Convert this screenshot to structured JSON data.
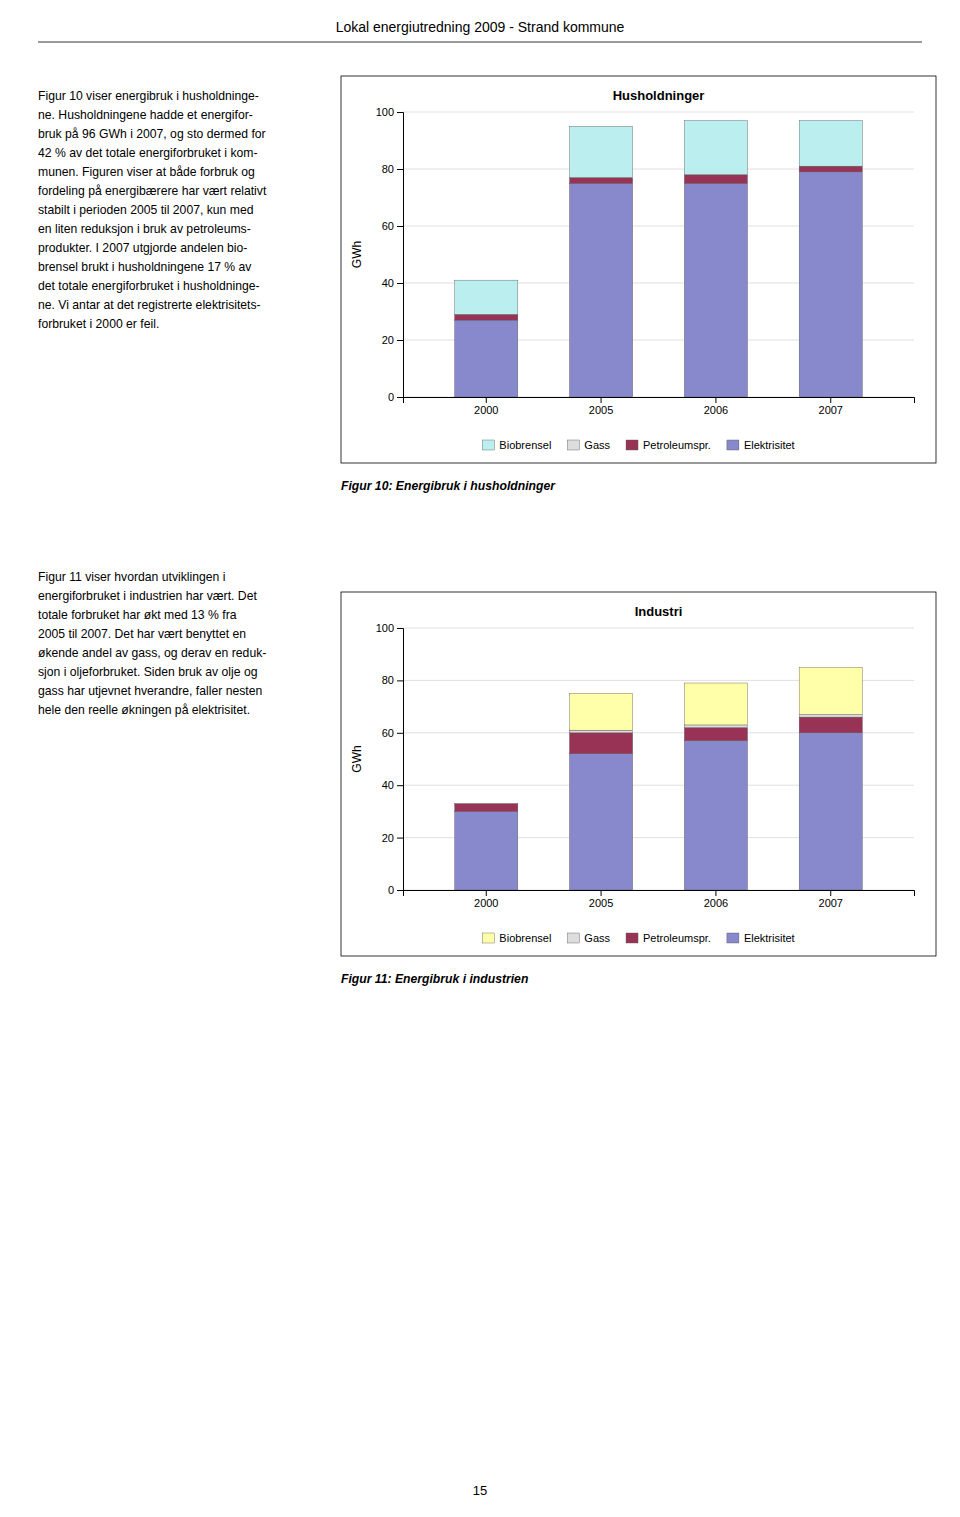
{
  "title": "Lokal energiutredning 2009 - Strand kommune",
  "annotations": [
    "15"
  ],
  "chart_data": [
    {
      "type": "bar",
      "stacked": true,
      "grid": true,
      "title": "Husholdninger",
      "ylabel": "GWh",
      "categories": [
        "2000",
        "2005",
        "2006",
        "2007"
      ],
      "series": [
        {
          "name": "Elektrisitet",
          "color": "#8888cc",
          "values": [
            27,
            75,
            75,
            79
          ]
        },
        {
          "name": "Petroleumspr.",
          "color": "#993355",
          "values": [
            2,
            2,
            3,
            2
          ]
        },
        {
          "name": "Gass",
          "color": "#dddddd",
          "values": [
            0,
            0,
            0,
            0
          ]
        },
        {
          "name": "Biobrensel",
          "color": "#bbeeee",
          "values": [
            12,
            18,
            19,
            16
          ]
        }
      ],
      "ylim": [
        0,
        100
      ],
      "yticks": [
        0,
        20,
        40,
        60,
        80,
        100
      ],
      "annotations": [
        "Figur 10 viser energibruk i husholdninge-\nne. Husholdningene hadde et energifor-\nbruk på 96 GWh i 2007, og sto dermed for\n42 % av det totale energiforbruket i kom-\nmunen. Figuren viser at både forbruk og\nfordeling på energibærere har vært relativt\nstabilt i perioden 2005 til 2007, kun med\nen liten reduksjon i bruk av petroleums-\nprodukter. I 2007 utgjorde andelen bio-\nbrensel brukt i husholdningene 17 % av\ndet totale energiforbruket i husholdninge-\nne. Vi antar at det registrerte elektrisitets-\nforbruket i 2000 er feil.",
        "Figur 10: Energibruk i husholdninger"
      ]
    },
    {
      "type": "bar",
      "stacked": true,
      "grid": true,
      "title": "Industri",
      "ylabel": "GWh",
      "categories": [
        "2000",
        "2005",
        "2006",
        "2007"
      ],
      "series": [
        {
          "name": "Elektrisitet",
          "color": "#8888cc",
          "values": [
            30,
            52,
            57,
            60
          ]
        },
        {
          "name": "Petroleumspr.",
          "color": "#993355",
          "values": [
            3,
            8,
            5,
            6
          ]
        },
        {
          "name": "Gass",
          "color": "#dddddd",
          "values": [
            0,
            1,
            1,
            1
          ]
        },
        {
          "name": "Biobrensel",
          "color": "#ffffaa",
          "values": [
            0,
            14,
            16,
            18
          ]
        }
      ],
      "ylim": [
        0,
        100
      ],
      "yticks": [
        0,
        20,
        40,
        60,
        80,
        100
      ],
      "annotations": [
        "Figur 11 viser hvordan utviklingen i\nenergiforbruket i industrien har vært. Det\ntotale forbruket har økt med 13 % fra\n2005 til 2007. Det har vært benyttet en\nøkende andel av gass, og derav en reduk-\nsjon i oljeforbruket. Siden bruk av olje og\ngass har utjevnet hverandre, faller nesten\nhele den reelle økningen på elektrisitet.",
        "Figur 11: Energibruk i industrien"
      ]
    }
  ]
}
